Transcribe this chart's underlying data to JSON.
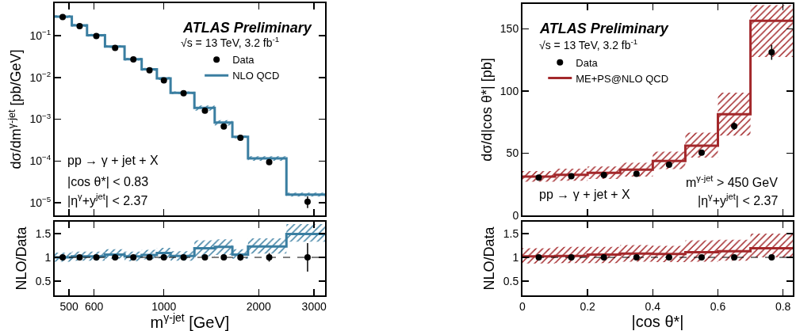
{
  "chart_data": [
    {
      "type": "scatter",
      "log": "xy",
      "x": [
        477,
        540,
        610,
        700,
        800,
        900,
        1000,
        1155,
        1350,
        1550,
        1750,
        2160,
        2860
      ],
      "xlim": [
        450,
        3250
      ],
      "xticks": [
        500,
        600,
        1000,
        2000,
        3000
      ],
      "ylim": [
        5e-06,
        0.6
      ],
      "yticks": [
        {
          "value": 1e-05,
          "label": "10$^{−5}$"
        },
        {
          "value": 0.0001,
          "label": "10$^{−4}$"
        },
        {
          "value": 0.001,
          "label": "10$^{−3}$"
        },
        {
          "value": 0.01,
          "label": "10$^{−2}$"
        },
        {
          "value": 0.1,
          "label": "10$^{−1}$"
        }
      ],
      "ylabel": "dσ/dm$^{γ-jet}$ [pb/GeV]",
      "tick_labels": "y",
      "legend": "top right",
      "annotations": [
        "ATLAS Preliminary",
        "√s = 13 TeV, 3.2 fb$^{-1}$",
        "pp → γ + jet + X",
        "|cos θ*| < 0.83",
        "|η$^{γ}$+y$^{jet}$| < 2.37"
      ],
      "series": [
        {
          "name": "Data",
          "type": "scatter",
          "marker": "circle",
          "color": "#000000",
          "values": [
            0.28,
            0.17,
            0.098,
            0.051,
            0.027,
            0.0148,
            0.0085,
            0.0042,
            0.0016,
            0.00067,
            0.00036,
            9.4e-05,
            1.06e-05
          ],
          "errors": [
            null,
            null,
            null,
            null,
            null,
            null,
            null,
            null,
            null,
            null,
            null,
            null,
            [
              7.5e-06,
              1.42e-05
            ]
          ]
        },
        {
          "name": "NLO QCD",
          "type": "step",
          "color": "#3a7ea1",
          "x": [
            450,
            510,
            570,
            650,
            750,
            850,
            950,
            1050,
            1250,
            1450,
            1650,
            1850,
            2450,
            3250
          ],
          "values": [
            0.287,
            0.176,
            0.103,
            0.055,
            0.0275,
            0.0157,
            0.0095,
            0.0043,
            0.00187,
            0.00083,
            0.00038,
            0.000116,
            1.58e-05,
            1.58e-05
          ],
          "lower": [
            0.264,
            0.162,
            0.095,
            0.051,
            0.0253,
            0.0144,
            0.0087,
            0.004,
            0.0016,
            0.00071,
            0.00035,
            0.000102,
            1.41e-05,
            1.41e-05
          ],
          "upper": [
            0.31,
            0.19,
            0.111,
            0.059,
            0.0297,
            0.017,
            0.0103,
            0.0046,
            0.00214,
            0.00095,
            0.00041,
            0.00013,
            1.76e-05,
            1.76e-05
          ]
        }
      ]
    },
    {
      "type": "scatter",
      "log": "x",
      "x": [
        477,
        540,
        610,
        700,
        800,
        900,
        1000,
        1155,
        1350,
        1550,
        1750,
        2160,
        2860
      ],
      "xlim": [
        450,
        3250
      ],
      "xticks": [
        500,
        600,
        1000,
        2000,
        3000
      ],
      "ylim": [
        0.2,
        1.75
      ],
      "yticks": [
        0.5,
        1,
        1.5
      ],
      "ylabel": "NLO/Data",
      "xlabel": "m$^{γ-jet}$ [GeV]",
      "ref_lines": [
        {
          "axis": "y",
          "value": 1,
          "line_style": "dashed"
        }
      ],
      "series": [
        {
          "type": "scatter",
          "marker": "circle",
          "color": "#000000",
          "values": [
            1,
            1,
            1,
            1,
            1,
            1,
            1,
            1,
            1,
            1,
            1,
            1,
            1
          ],
          "errors": [
            0.02,
            0.02,
            0.02,
            0.02,
            0.02,
            0.02,
            0.02,
            0.02,
            0.02,
            0.05,
            0.07,
            0.09,
            0.3
          ]
        },
        {
          "type": "step",
          "color": "#3a7ea1",
          "x": [
            450,
            510,
            570,
            650,
            750,
            850,
            950,
            1050,
            1250,
            1450,
            1650,
            1850,
            2450,
            3250
          ],
          "values": [
            1.0,
            1.02,
            1.02,
            1.06,
            1.02,
            1.05,
            1.09,
            1.03,
            1.19,
            1.22,
            1.06,
            1.23,
            1.49,
            1.49
          ],
          "lower": [
            0.91,
            0.93,
            0.93,
            0.97,
            0.92,
            0.96,
            0.98,
            0.93,
            1.02,
            1.05,
            0.97,
            1.08,
            1.33,
            1.33
          ],
          "upper": [
            1.1,
            1.12,
            1.12,
            1.17,
            1.12,
            1.16,
            1.2,
            1.13,
            1.36,
            1.38,
            1.17,
            1.4,
            1.7,
            1.7
          ]
        }
      ]
    },
    {
      "type": "scatter",
      "x": [
        0.05,
        0.15,
        0.25,
        0.35,
        0.45,
        0.55,
        0.65,
        0.765
      ],
      "xlim": [
        0,
        0.83
      ],
      "xticks": [
        0,
        0.2,
        0.4,
        0.6,
        0.8
      ],
      "ylim": [
        0,
        170
      ],
      "yticks": [
        0,
        50,
        100,
        150
      ],
      "ylabel": "dσ/d|cos θ*| [pb]",
      "tick_labels": "y",
      "legend": "top left",
      "annotations": [
        "ATLAS Preliminary",
        "√s = 13 TeV, 3.2 fb$^{-1}$",
        "m$^{γ-jet}$ > 450 GeV",
        "|η$^{γ}$+y$^{jet}$| < 2.37",
        "pp → γ + jet + X"
      ],
      "series": [
        {
          "name": "Data",
          "type": "scatter",
          "marker": "circle",
          "color": "#000000",
          "values": [
            30.4,
            31.5,
            32.5,
            33.5,
            40.8,
            50.4,
            71.8,
            131.1
          ],
          "errors": [
            null,
            null,
            null,
            null,
            null,
            null,
            3,
            6
          ]
        },
        {
          "name": "ME+PS@NLO QCD",
          "type": "step",
          "color": "#a3282b",
          "x": [
            0,
            0.1,
            0.2,
            0.3,
            0.4,
            0.5,
            0.6,
            0.7,
            0.83
          ],
          "values": [
            31.2,
            32.7,
            34.2,
            36.7,
            43.7,
            56.0,
            81.3,
            156.4,
            156.4
          ],
          "lower": [
            27.0,
            27.8,
            29.3,
            31.2,
            37.2,
            46.5,
            64.1,
            127.3,
            127.3
          ],
          "upper": [
            35.6,
            37.6,
            39.3,
            42.3,
            51.2,
            66.5,
            98.7,
            169,
            169
          ]
        }
      ]
    },
    {
      "type": "scatter",
      "x": [
        0.05,
        0.15,
        0.25,
        0.35,
        0.45,
        0.55,
        0.65,
        0.765
      ],
      "xlim": [
        0,
        0.83
      ],
      "xticks": [
        0,
        0.2,
        0.4,
        0.6,
        0.8
      ],
      "ylim": [
        0.2,
        1.75
      ],
      "yticks": [
        0.5,
        1,
        1.5
      ],
      "ylabel": "NLO/Data",
      "xlabel": "|cos θ*|",
      "ref_lines": [
        {
          "axis": "y",
          "value": 1,
          "line_style": "dashed"
        }
      ],
      "series": [
        {
          "type": "scatter",
          "marker": "circle",
          "color": "#000000",
          "values": [
            1,
            1,
            1,
            1,
            1,
            1,
            1,
            1
          ],
          "errors": [
            0.02,
            0.02,
            0.02,
            0.02,
            0.02,
            0.02,
            0.02,
            0.03
          ]
        },
        {
          "type": "step",
          "color": "#a3282b",
          "x": [
            0,
            0.1,
            0.2,
            0.3,
            0.4,
            0.5,
            0.6,
            0.7,
            0.83
          ],
          "values": [
            1.02,
            1.03,
            1.06,
            1.08,
            1.07,
            1.11,
            1.13,
            1.19,
            1.19
          ],
          "lower": [
            0.87,
            0.88,
            0.88,
            0.91,
            0.9,
            0.91,
            0.93,
            1.0,
            1.0
          ],
          "upper": [
            1.19,
            1.22,
            1.22,
            1.26,
            1.24,
            1.36,
            1.37,
            1.5,
            1.5
          ]
        }
      ]
    }
  ]
}
